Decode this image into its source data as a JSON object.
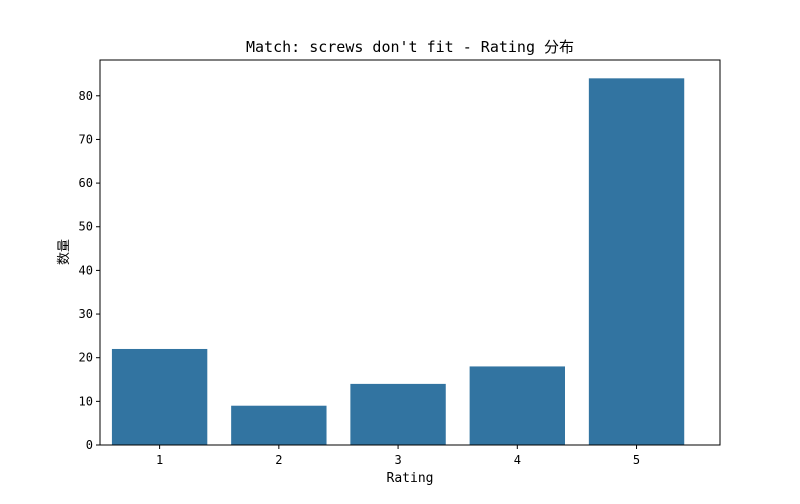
{
  "chart_data": {
    "type": "bar",
    "title": "Match: screws don't fit - Rating 分布",
    "xlabel": "Rating",
    "ylabel": "数量",
    "categories": [
      "1",
      "2",
      "3",
      "4",
      "5"
    ],
    "values": [
      22,
      9,
      14,
      18,
      84
    ],
    "ylim": [
      0,
      88.2
    ],
    "yticks": [
      0,
      10,
      20,
      30,
      40,
      50,
      60,
      70,
      80
    ],
    "bar_color": "#3274a1",
    "grid": false,
    "legend": "none"
  }
}
